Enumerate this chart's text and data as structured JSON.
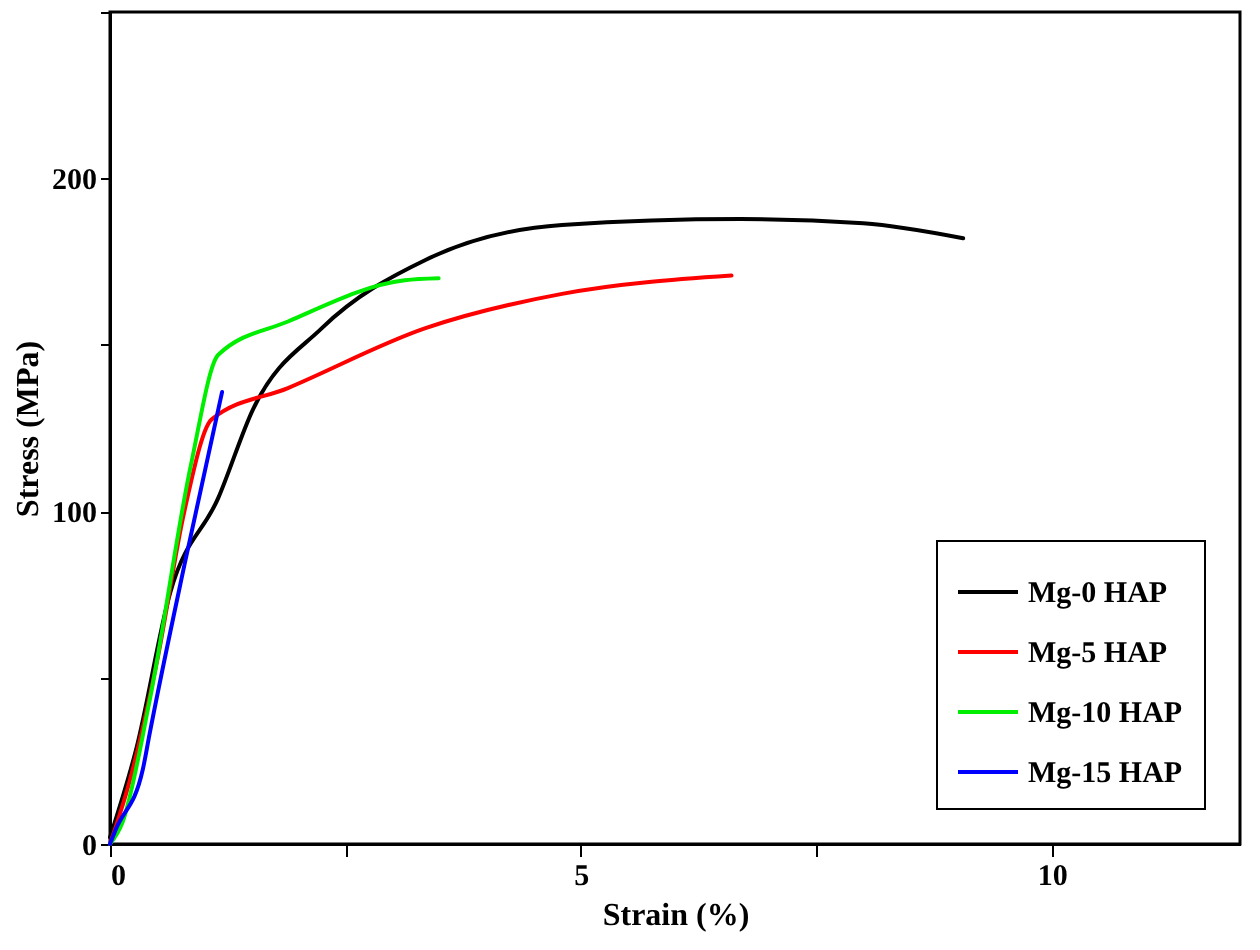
{
  "chart_data": {
    "type": "line",
    "xlabel": "Strain (%)",
    "ylabel": "Stress (MPa)",
    "xlim": [
      0,
      12
    ],
    "ylim": [
      0,
      250
    ],
    "xticks": [
      0,
      {
        "value": 2.5,
        "label": null
      },
      5,
      {
        "value": 7.5,
        "label": null
      },
      10
    ],
    "yticks": [
      0,
      {
        "value": 50,
        "label": null
      },
      100,
      {
        "value": 150,
        "label": null
      },
      200,
      {
        "value": 250,
        "label": null
      }
    ],
    "grid": false,
    "legend": "bottom right",
    "line_style": "solid",
    "marker": "none",
    "series": [
      {
        "name": "Mg-0   HAP",
        "color": "#000000",
        "x": [
          0,
          0.28,
          0.64,
          1.15,
          1.52,
          2.25,
          3.35,
          4.8,
          6.7,
          8,
          9.06
        ],
        "values": [
          2,
          28.7,
          75.6,
          104,
          130.7,
          155,
          175.5,
          186,
          187.8,
          186.5,
          182
        ]
      },
      {
        "name": "Mg-5   HAP",
        "color": "#ff0000",
        "x": [
          0,
          0.2,
          0.5,
          0.79,
          1.08,
          1.89,
          3.35,
          4.8,
          6.6
        ],
        "values": [
          0,
          18,
          55,
          100,
          127.6,
          137,
          155,
          165.3,
          170.8
        ]
      },
      {
        "name": "Mg-10 HAP",
        "color": "#00ee00",
        "x": [
          0,
          0.13,
          0.42,
          0.86,
          1.15,
          1.89,
          3.13,
          3.49
        ],
        "values": [
          0,
          6.3,
          43,
          114,
          147,
          157,
          169.4,
          170
        ]
      },
      {
        "name": "Mg-15 HAP",
        "color": "#0000ff",
        "x": [
          0,
          0.06,
          0.35,
          0.42,
          0.79,
          1.19
        ],
        "values": [
          0,
          4.3,
          22.6,
          33,
          83.8,
          135.8
        ]
      }
    ]
  }
}
